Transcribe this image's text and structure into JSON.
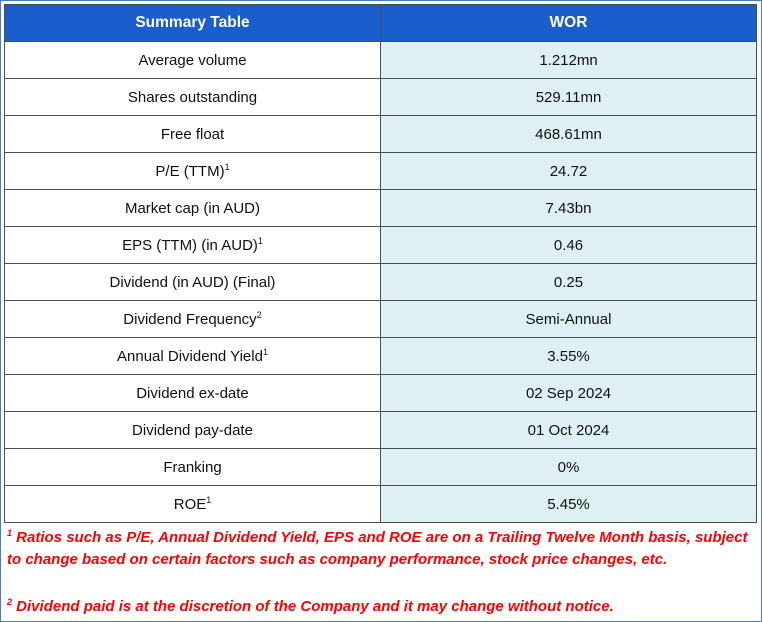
{
  "table": {
    "headers": [
      "Summary Table",
      "WOR"
    ],
    "rows": [
      {
        "label": "Average volume",
        "sup": "",
        "value": "1.212mn"
      },
      {
        "label": "Shares outstanding",
        "sup": "",
        "value": "529.11mn"
      },
      {
        "label": "Free float",
        "sup": "",
        "value": "468.61mn"
      },
      {
        "label": "P/E (TTM)",
        "sup": "1",
        "value": "24.72"
      },
      {
        "label": "Market cap (in AUD)",
        "sup": "",
        "value": "7.43bn"
      },
      {
        "label": "EPS (TTM) (in AUD)",
        "sup": "1",
        "value": "0.46"
      },
      {
        "label": "Dividend (in AUD) (Final)",
        "sup": "",
        "value": "0.25"
      },
      {
        "label": "Dividend Frequency",
        "sup": "2",
        "value": "Semi-Annual"
      },
      {
        "label": "Annual Dividend Yield",
        "sup": "1",
        "value": "3.55%"
      },
      {
        "label": "Dividend ex-date",
        "sup": "",
        "value": "02 Sep 2024"
      },
      {
        "label": "Dividend pay-date",
        "sup": "",
        "value": "01 Oct 2024"
      },
      {
        "label": "Franking",
        "sup": "",
        "value": "0%"
      },
      {
        "label": "ROE",
        "sup": "1",
        "value": "5.45%"
      }
    ]
  },
  "footnotes": [
    {
      "mark": "1",
      "text": " Ratios such as P/E, Annual Dividend Yield, EPS and ROE are on a Trailing Twelve Month basis, subject to change based on certain factors such as company performance, stock price changes, etc."
    },
    {
      "mark": "2",
      "text": " Dividend paid is at the discretion of the Company and it may change without notice."
    }
  ],
  "colors": {
    "header": "#1a5dcc",
    "value_cell": "#dff0f4",
    "footnote": "#ff0000",
    "frame": "#4a7ebb"
  }
}
